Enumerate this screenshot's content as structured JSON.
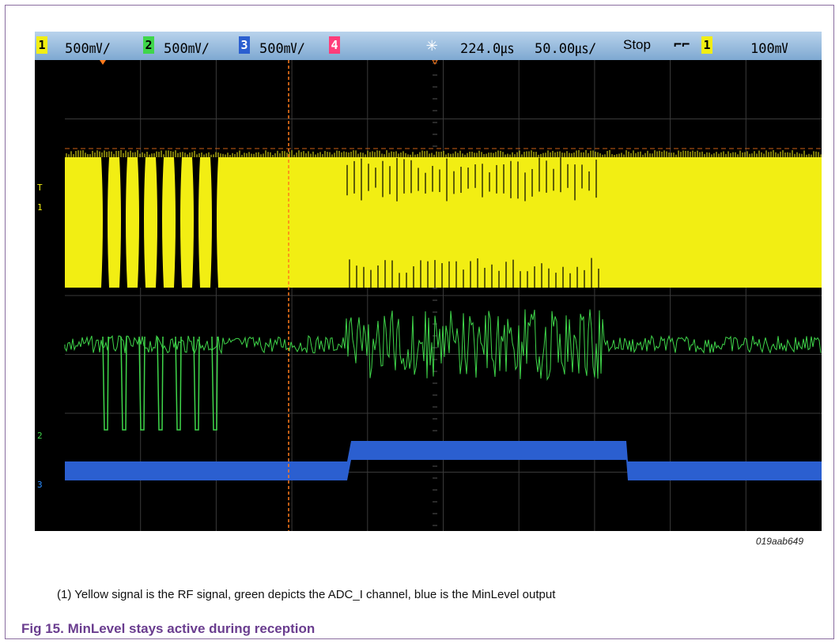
{
  "statusbar": {
    "ch1_num": "1",
    "ch1_scale": "500㎷/",
    "ch2_num": "2",
    "ch2_scale": "500㎷/",
    "ch3_num": "3",
    "ch3_scale": "500㎷/",
    "ch4_num": "4",
    "time_offset": "224.0㎲",
    "time_scale": "50.00㎲/",
    "run_state": "Stop",
    "trigger_source": "1",
    "trigger_level": "100㎷"
  },
  "markers": {
    "trigger_marker": "T",
    "ch1_marker": "1",
    "ch2_marker": "2",
    "ch3_marker": "3"
  },
  "colors": {
    "ch1": "#f2ee13",
    "ch2": "#3fd64a",
    "ch3": "#2b5fd0",
    "ch4": "#ff3d7a",
    "cursor": "#ff7a1a",
    "grid": "#3a3a3a",
    "caption": "#6a3d8f"
  },
  "figure_id": "019aab649",
  "footnote": "(1)  Yellow signal is the RF signal, green depicts the ADC_I channel, blue is the MinLevel output",
  "caption": "Fig 15. MinLevel stays active during reception"
}
